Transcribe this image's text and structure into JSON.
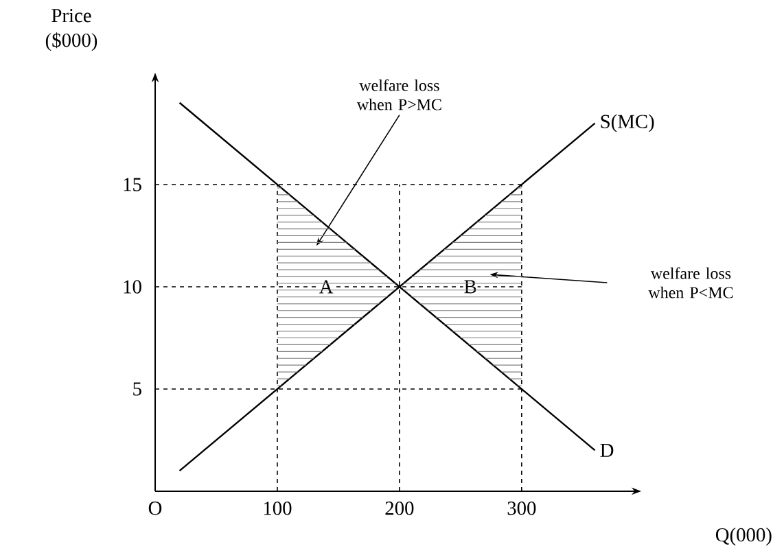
{
  "chart_data": {
    "type": "line",
    "xlabel": "Q(000)",
    "ylabel": "Price ($000)",
    "x": [
      20,
      360
    ],
    "series": [
      {
        "name": "S(MC)",
        "color": "#000000",
        "values": [
          1,
          18
        ]
      },
      {
        "name": "D",
        "color": "#000000",
        "values": [
          19,
          2
        ]
      }
    ],
    "xlim": [
      0,
      390
    ],
    "ylim": [
      0,
      20
    ],
    "xticks": [
      {
        "value": 0,
        "label": "O"
      },
      100,
      200,
      300
    ],
    "yticks": [
      5,
      10,
      15
    ],
    "ref_lines": [
      {
        "axis": "y",
        "value": 15,
        "line_style": "dashed"
      },
      {
        "axis": "y",
        "value": 10,
        "line_style": "dashed"
      },
      {
        "axis": "y",
        "value": 5,
        "line_style": "dashed"
      },
      {
        "axis": "x",
        "value": 100,
        "line_style": "dashed"
      },
      {
        "axis": "x",
        "value": 200,
        "line_style": "dashed"
      },
      {
        "axis": "x",
        "value": 300,
        "line_style": "dashed"
      }
    ],
    "annotations": [
      "A",
      "B",
      "welfare loss when P>MC",
      "welfare loss when P<MC"
    ],
    "marker": "none",
    "line_style": "solid"
  }
}
